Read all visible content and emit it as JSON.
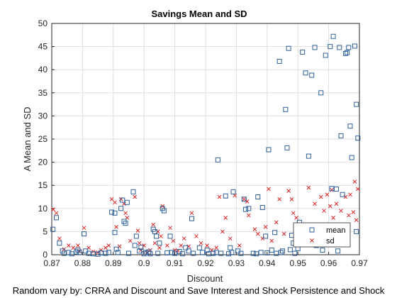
{
  "chart_data": {
    "type": "scatter",
    "title": "Savings Mean and SD",
    "xlabel": "Discount",
    "ylabel": "A Mean and SD",
    "footer": "Random vary by: CRRA and Discount and Save Interest and Shock Persistence and Shock",
    "xlim": [
      0.87,
      0.97
    ],
    "ylim": [
      0,
      50
    ],
    "xticks": [
      "0.87",
      "0.88",
      "0.89",
      "0.9",
      "0.91",
      "0.92",
      "0.93",
      "0.94",
      "0.95",
      "0.96",
      "0.97"
    ],
    "yticks": [
      "0",
      "5",
      "10",
      "15",
      "20",
      "25",
      "30",
      "35",
      "40",
      "45",
      "50"
    ],
    "grid": true,
    "legend_position": "bottom-right",
    "series": [
      {
        "name": "mean",
        "marker": "square",
        "color": "#2f5f98",
        "points": [
          [
            0.8704,
            5.5
          ],
          [
            0.8715,
            8.0
          ],
          [
            0.8725,
            2.5
          ],
          [
            0.8735,
            0.8
          ],
          [
            0.874,
            0.3
          ],
          [
            0.8755,
            0.5
          ],
          [
            0.8765,
            0.2
          ],
          [
            0.878,
            0.6
          ],
          [
            0.8785,
            1.0
          ],
          [
            0.879,
            0.5
          ],
          [
            0.8805,
            4.5
          ],
          [
            0.881,
            0.8
          ],
          [
            0.882,
            0.3
          ],
          [
            0.8835,
            0.2
          ],
          [
            0.885,
            0.1
          ],
          [
            0.886,
            0.4
          ],
          [
            0.8875,
            0.3
          ],
          [
            0.8885,
            0.5
          ],
          [
            0.8895,
            9.2
          ],
          [
            0.8905,
            9.0
          ],
          [
            0.8905,
            4.8
          ],
          [
            0.891,
            1.2
          ],
          [
            0.8915,
            0.5
          ],
          [
            0.8925,
            10.0
          ],
          [
            0.893,
            11.8
          ],
          [
            0.8935,
            7.2
          ],
          [
            0.894,
            6.8
          ],
          [
            0.8945,
            11.3
          ],
          [
            0.895,
            0.3
          ],
          [
            0.8965,
            13.6
          ],
          [
            0.897,
            2.0
          ],
          [
            0.8975,
            4.0
          ],
          [
            0.8985,
            0.8
          ],
          [
            0.899,
            1.6
          ],
          [
            0.9,
            0.2
          ],
          [
            0.9005,
            0.5
          ],
          [
            0.9015,
            0.6
          ],
          [
            0.902,
            0.2
          ],
          [
            0.903,
            5.5
          ],
          [
            0.9035,
            5.0
          ],
          [
            0.904,
            4.0
          ],
          [
            0.9045,
            0.3
          ],
          [
            0.905,
            2.5
          ],
          [
            0.906,
            10.0
          ],
          [
            0.9065,
            9.5
          ],
          [
            0.9075,
            0.4
          ],
          [
            0.9085,
            4.0
          ],
          [
            0.909,
            0.5
          ],
          [
            0.91,
            0.3
          ],
          [
            0.9115,
            0.7
          ],
          [
            0.9125,
            0.2
          ],
          [
            0.9135,
            1.5
          ],
          [
            0.9145,
            0.8
          ],
          [
            0.9155,
            7.8
          ],
          [
            0.916,
            0.3
          ],
          [
            0.918,
            1.5
          ],
          [
            0.919,
            0.5
          ],
          [
            0.9205,
            1.0
          ],
          [
            0.921,
            0.2
          ],
          [
            0.9225,
            0.3
          ],
          [
            0.9235,
            0.5
          ],
          [
            0.924,
            20.5
          ],
          [
            0.925,
            0.3
          ],
          [
            0.9265,
            12.7
          ],
          [
            0.9275,
            0.2
          ],
          [
            0.928,
            1.5
          ],
          [
            0.9285,
            0.5
          ],
          [
            0.929,
            13.6
          ],
          [
            0.9305,
            0.8
          ],
          [
            0.9315,
            0.3
          ],
          [
            0.9325,
            12.0
          ],
          [
            0.933,
            9.8
          ],
          [
            0.934,
            10.0
          ],
          [
            0.9355,
            0.3
          ],
          [
            0.9365,
            0.2
          ],
          [
            0.937,
            12.5
          ],
          [
            0.938,
            0.5
          ],
          [
            0.9385,
            10.2
          ],
          [
            0.9395,
            4.0
          ],
          [
            0.94,
            0.4
          ],
          [
            0.9405,
            22.7
          ],
          [
            0.9415,
            1.0
          ],
          [
            0.9425,
            4.8
          ],
          [
            0.943,
            0.3
          ],
          [
            0.944,
            41.8
          ],
          [
            0.9445,
            0.5
          ],
          [
            0.945,
            0.8
          ],
          [
            0.946,
            31.4
          ],
          [
            0.9465,
            23.1
          ],
          [
            0.947,
            44.6
          ],
          [
            0.9475,
            1.1
          ],
          [
            0.948,
            4.2
          ],
          [
            0.9485,
            2.5
          ],
          [
            0.949,
            0.3
          ],
          [
            0.95,
            1.3
          ],
          [
            0.9505,
            7.0
          ],
          [
            0.9515,
            43.8
          ],
          [
            0.9525,
            39.3
          ],
          [
            0.9535,
            21.3
          ],
          [
            0.9545,
            38.8
          ],
          [
            0.9555,
            44.8
          ],
          [
            0.956,
            2.0
          ],
          [
            0.9575,
            35.0
          ],
          [
            0.958,
            1.0
          ],
          [
            0.959,
            43.1
          ],
          [
            0.9595,
            4.5
          ],
          [
            0.9605,
            45.0
          ],
          [
            0.961,
            14.3
          ],
          [
            0.9615,
            47.2
          ],
          [
            0.9625,
            14.2
          ],
          [
            0.963,
            0.8
          ],
          [
            0.9635,
            44.8
          ],
          [
            0.964,
            25.7
          ],
          [
            0.9645,
            13.0
          ],
          [
            0.9655,
            43.5
          ],
          [
            0.966,
            43.7
          ],
          [
            0.9665,
            44.8
          ],
          [
            0.967,
            27.8
          ],
          [
            0.9675,
            21.0
          ],
          [
            0.9685,
            45.1
          ],
          [
            0.969,
            32.5
          ],
          [
            0.9695,
            25.2
          ],
          [
            0.969,
            5.0
          ]
        ]
      },
      {
        "name": "sd",
        "marker": "x",
        "color": "#d62728",
        "points": [
          [
            0.8705,
            9.8
          ],
          [
            0.8715,
            9.0
          ],
          [
            0.8725,
            3.5
          ],
          [
            0.874,
            1.2
          ],
          [
            0.8755,
            2.0
          ],
          [
            0.877,
            1.5
          ],
          [
            0.8785,
            2.0
          ],
          [
            0.879,
            0.8
          ],
          [
            0.8805,
            5.8
          ],
          [
            0.882,
            1.5
          ],
          [
            0.8835,
            0.7
          ],
          [
            0.885,
            0.5
          ],
          [
            0.886,
            1.0
          ],
          [
            0.8875,
            1.5
          ],
          [
            0.8885,
            2.0
          ],
          [
            0.8895,
            12.0
          ],
          [
            0.8905,
            11.3
          ],
          [
            0.891,
            6.0
          ],
          [
            0.892,
            1.8
          ],
          [
            0.8925,
            12.0
          ],
          [
            0.8935,
            11.0
          ],
          [
            0.894,
            9.0
          ],
          [
            0.8945,
            8.0
          ],
          [
            0.8955,
            3.0
          ],
          [
            0.897,
            12.5
          ],
          [
            0.898,
            5.2
          ],
          [
            0.8985,
            2.5
          ],
          [
            0.899,
            1.0
          ],
          [
            0.9,
            2.0
          ],
          [
            0.901,
            0.5
          ],
          [
            0.902,
            1.0
          ],
          [
            0.903,
            6.5
          ],
          [
            0.9035,
            2.5
          ],
          [
            0.9045,
            5.0
          ],
          [
            0.905,
            1.5
          ],
          [
            0.9055,
            4.0
          ],
          [
            0.906,
            10.5
          ],
          [
            0.9075,
            2.0
          ],
          [
            0.9085,
            5.8
          ],
          [
            0.9095,
            3.0
          ],
          [
            0.91,
            1.0
          ],
          [
            0.911,
            0.8
          ],
          [
            0.912,
            2.0
          ],
          [
            0.913,
            3.5
          ],
          [
            0.9145,
            1.8
          ],
          [
            0.9155,
            9.0
          ],
          [
            0.917,
            4.0
          ],
          [
            0.9185,
            2.5
          ],
          [
            0.9205,
            2.0
          ],
          [
            0.922,
            1.0
          ],
          [
            0.9235,
            1.5
          ],
          [
            0.9245,
            12.5
          ],
          [
            0.9255,
            5.0
          ],
          [
            0.9265,
            8.0
          ],
          [
            0.928,
            3.5
          ],
          [
            0.9295,
            12.8
          ],
          [
            0.931,
            2.0
          ],
          [
            0.9325,
            12.0
          ],
          [
            0.9335,
            11.5
          ],
          [
            0.934,
            8.5
          ],
          [
            0.936,
            5.5
          ],
          [
            0.937,
            4.5
          ],
          [
            0.9385,
            3.5
          ],
          [
            0.9395,
            6.0
          ],
          [
            0.9405,
            14.2
          ],
          [
            0.9415,
            3.0
          ],
          [
            0.943,
            7.0
          ],
          [
            0.944,
            12.0
          ],
          [
            0.9455,
            4.5
          ],
          [
            0.947,
            13.8
          ],
          [
            0.948,
            12.0
          ],
          [
            0.9485,
            9.0
          ],
          [
            0.9495,
            8.0
          ],
          [
            0.9505,
            3.5
          ],
          [
            0.9515,
            6.5
          ],
          [
            0.952,
            4.0
          ],
          [
            0.953,
            2.5
          ],
          [
            0.9535,
            14.5
          ],
          [
            0.9545,
            6.5
          ],
          [
            0.9555,
            11.0
          ],
          [
            0.9565,
            4.0
          ],
          [
            0.9575,
            12.5
          ],
          [
            0.9585,
            9.5
          ],
          [
            0.9595,
            13.0
          ],
          [
            0.9605,
            10.5
          ],
          [
            0.961,
            14.0
          ],
          [
            0.9615,
            8.0
          ],
          [
            0.9625,
            11.0
          ],
          [
            0.963,
            5.0
          ],
          [
            0.964,
            9.5
          ],
          [
            0.9655,
            12.5
          ],
          [
            0.9665,
            8.5
          ],
          [
            0.967,
            13.0
          ],
          [
            0.968,
            9.2
          ],
          [
            0.9685,
            15.8
          ],
          [
            0.969,
            7.5
          ],
          [
            0.9695,
            14.2
          ]
        ]
      }
    ]
  }
}
